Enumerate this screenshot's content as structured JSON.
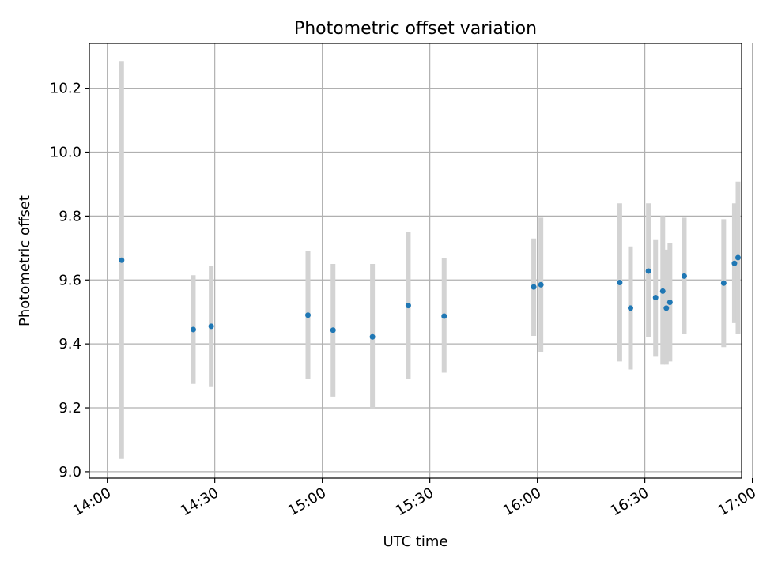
{
  "chart_data": {
    "type": "scatter",
    "title": "Photometric offset variation",
    "xlabel": "UTC time",
    "ylabel": "Photometric offset",
    "xlim": [
      "13:55",
      "16:57"
    ],
    "ylim": [
      8.98,
      10.34
    ],
    "x_ticks": [
      "14:00",
      "14:30",
      "15:00",
      "15:30",
      "16:00",
      "16:30",
      "17:00"
    ],
    "y_ticks": [
      "9.0",
      "9.2",
      "9.4",
      "9.6",
      "9.8",
      "10.0",
      "10.2"
    ],
    "grid": true,
    "colors": {
      "points": "#1f77b4",
      "errorbars": "#d3d3d3"
    },
    "points": [
      {
        "t": "14:04",
        "y": 9.662,
        "lo": 9.04,
        "hi": 10.285
      },
      {
        "t": "14:24",
        "y": 9.445,
        "lo": 9.275,
        "hi": 9.615
      },
      {
        "t": "14:29",
        "y": 9.455,
        "lo": 9.265,
        "hi": 9.645
      },
      {
        "t": "14:56",
        "y": 9.49,
        "lo": 9.29,
        "hi": 9.69
      },
      {
        "t": "15:03",
        "y": 9.443,
        "lo": 9.235,
        "hi": 9.65
      },
      {
        "t": "15:14",
        "y": 9.422,
        "lo": 9.195,
        "hi": 9.65
      },
      {
        "t": "15:24",
        "y": 9.52,
        "lo": 9.29,
        "hi": 9.75
      },
      {
        "t": "15:34",
        "y": 9.487,
        "lo": 9.31,
        "hi": 9.668
      },
      {
        "t": "15:59",
        "y": 9.578,
        "lo": 9.425,
        "hi": 9.73
      },
      {
        "t": "16:01",
        "y": 9.585,
        "lo": 9.375,
        "hi": 9.795
      },
      {
        "t": "16:23",
        "y": 9.592,
        "lo": 9.345,
        "hi": 9.84
      },
      {
        "t": "16:26",
        "y": 9.512,
        "lo": 9.32,
        "hi": 9.705
      },
      {
        "t": "16:31",
        "y": 9.628,
        "lo": 9.42,
        "hi": 9.84
      },
      {
        "t": "16:33",
        "y": 9.545,
        "lo": 9.36,
        "hi": 9.725
      },
      {
        "t": "16:35",
        "y": 9.565,
        "lo": 9.335,
        "hi": 9.8
      },
      {
        "t": "16:36",
        "y": 9.512,
        "lo": 9.335,
        "hi": 9.695
      },
      {
        "t": "16:37",
        "y": 9.53,
        "lo": 9.345,
        "hi": 9.715
      },
      {
        "t": "16:41",
        "y": 9.612,
        "lo": 9.43,
        "hi": 9.795
      },
      {
        "t": "16:52",
        "y": 9.59,
        "lo": 9.39,
        "hi": 9.79
      },
      {
        "t": "16:55",
        "y": 9.652,
        "lo": 9.465,
        "hi": 9.84
      },
      {
        "t": "16:56",
        "y": 9.67,
        "lo": 9.43,
        "hi": 9.908
      }
    ]
  }
}
